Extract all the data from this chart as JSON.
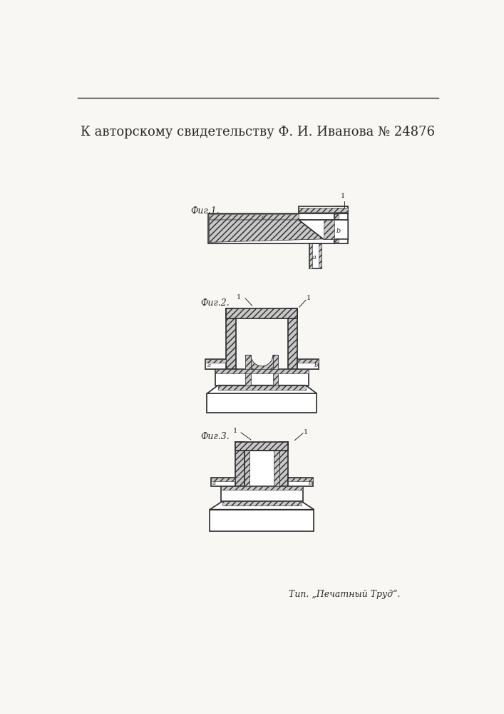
{
  "title": "К авторскому свидетельству Ф. И. Иванова № 24876",
  "footer": "Тип. „Печатный Труд“.",
  "fig1_label": "Фиг.1.",
  "fig2_label": "Фиг.2.",
  "fig3_label": "Фиг.3.",
  "bg": "#f8f7f4",
  "lc": "#2a2a2a",
  "hatch_fc": "#c8c8c8",
  "hatch_fc2": "#d8d8d8"
}
